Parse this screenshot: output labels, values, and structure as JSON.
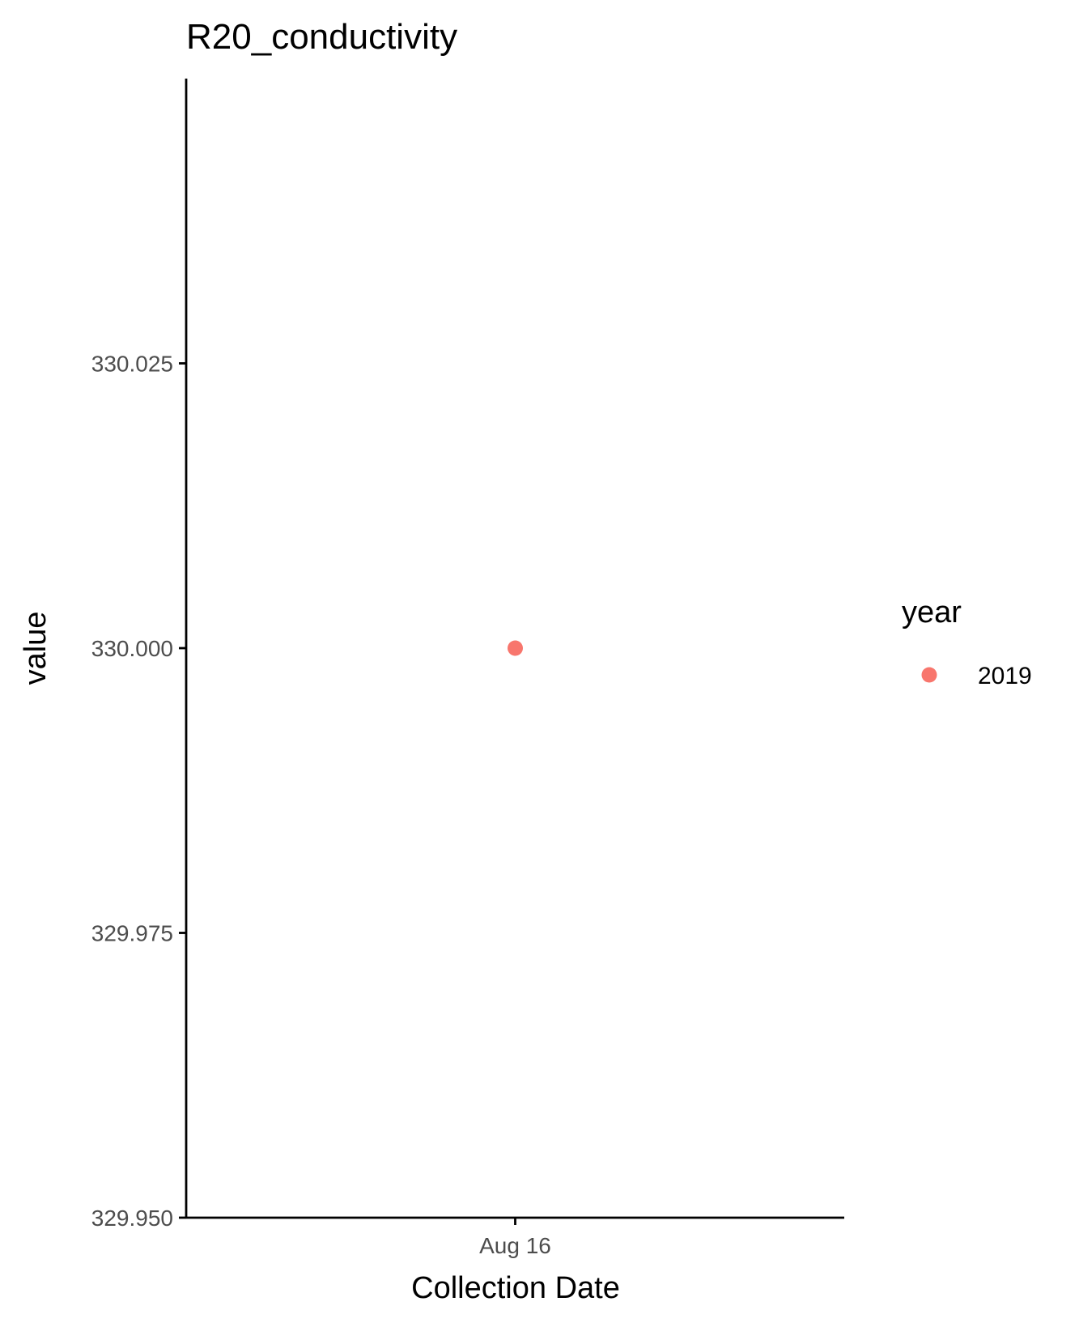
{
  "chart_data": {
    "type": "scatter",
    "title": "R20_conductivity",
    "xlabel": "Collection Date",
    "ylabel": "value",
    "x_categories": [
      "Aug 16"
    ],
    "ylim": [
      329.95,
      330.05
    ],
    "y_ticks": [
      329.95,
      329.975,
      330.0,
      330.025
    ],
    "y_tick_labels": [
      "329.950",
      "329.975",
      "330.000",
      "330.025"
    ],
    "x_tick_labels": [
      "Aug 16"
    ],
    "series": [
      {
        "name": "2019",
        "color": "#F8766D",
        "points": [
          {
            "x": "Aug 16",
            "y": 330.0
          }
        ]
      }
    ],
    "legend": {
      "title": "year",
      "position": "right",
      "entries": [
        "2019"
      ]
    }
  }
}
